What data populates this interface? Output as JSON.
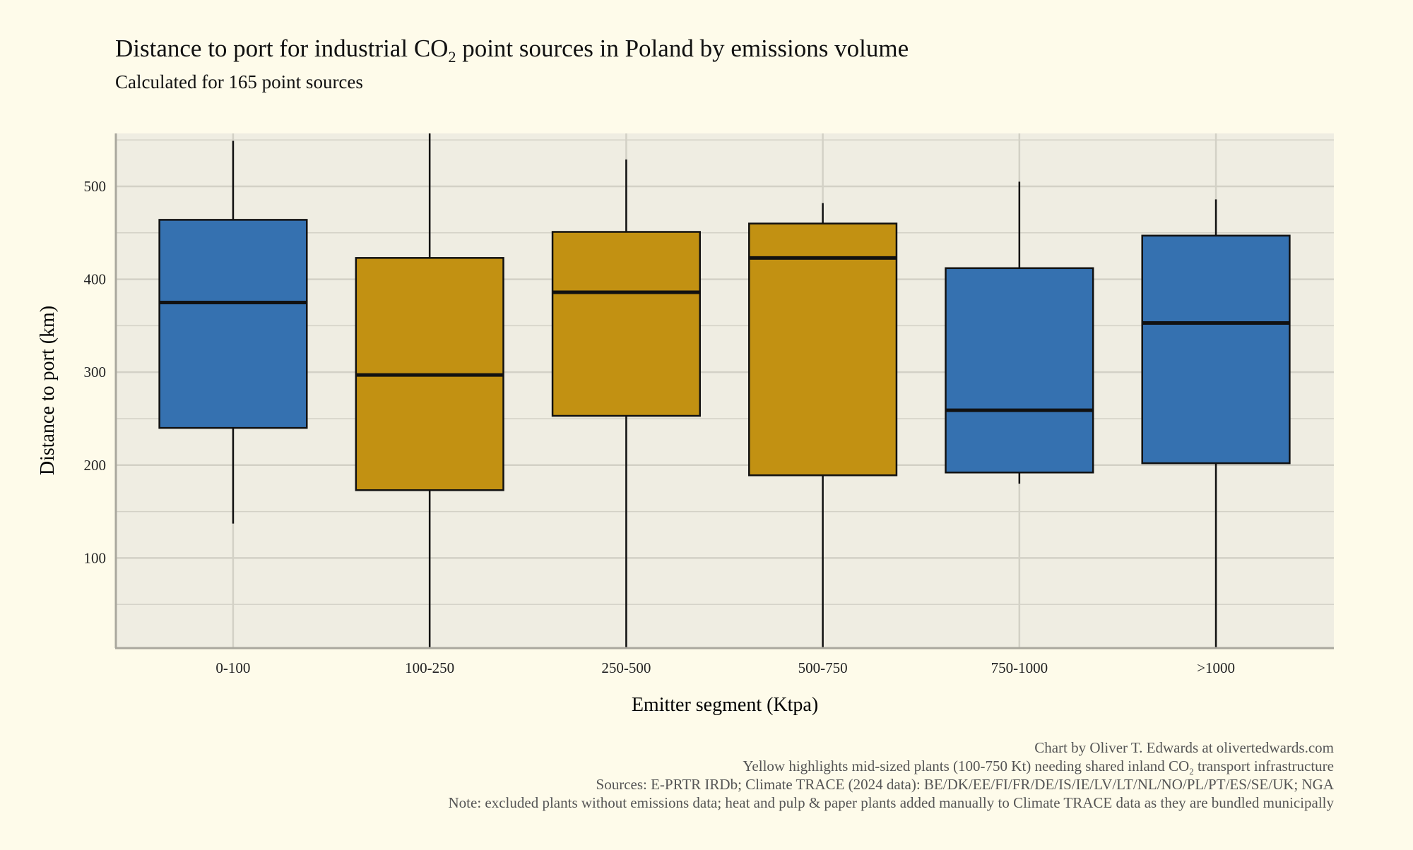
{
  "chart_data": {
    "type": "boxplot",
    "title_main": "Distance to port for industrial CO",
    "title_sub2": "2",
    "title_rest": " point sources in Poland by emissions volume",
    "subtitle": "Calculated for 165 point sources",
    "xlabel": "Emitter segment (Ktpa)",
    "ylabel": "Distance to port (km)",
    "ylim": [
      3,
      557
    ],
    "yticks": [
      100,
      200,
      300,
      400,
      500
    ],
    "yticks_minor": [
      50,
      150,
      250,
      350,
      450,
      550
    ],
    "grid": true,
    "categories": [
      "0-100",
      "100-250",
      "250-500",
      "500-750",
      "750-1000",
      ">1000"
    ],
    "boxes": [
      {
        "category": "0-100",
        "whisker_low": 137,
        "q1": 240,
        "median": 375,
        "q3": 464,
        "whisker_high": 549,
        "highlight": false
      },
      {
        "category": "100-250",
        "whisker_low": 3,
        "q1": 173,
        "median": 297,
        "q3": 423,
        "whisker_high": 557,
        "highlight": true
      },
      {
        "category": "250-500",
        "whisker_low": 3,
        "q1": 253,
        "median": 386,
        "q3": 451,
        "whisker_high": 529,
        "highlight": true
      },
      {
        "category": "500-750",
        "whisker_low": 3,
        "q1": 189,
        "median": 423,
        "q3": 460,
        "whisker_high": 482,
        "highlight": true
      },
      {
        "category": "750-1000",
        "whisker_low": 180,
        "q1": 192,
        "median": 259,
        "q3": 412,
        "whisker_high": 505,
        "highlight": false
      },
      {
        "category": ">1000",
        "whisker_low": 3,
        "q1": 202,
        "median": 353,
        "q3": 447,
        "whisker_high": 486,
        "highlight": false
      }
    ],
    "colors": {
      "default": "#3571b0",
      "highlight": "#c29112",
      "panel": "#efede2",
      "background": "#fefbea",
      "grid": "#d3d1c6"
    },
    "caption": {
      "line1": "Chart by Oliver T. Edwards at olivertedwards.com",
      "line2_a": "Yellow highlights mid-sized plants (100-750 Kt) needing shared inland CO",
      "line2_sub": "2",
      "line2_b": " transport infrastructure",
      "line3": "Sources: E-PRTR IRDb; Climate TRACE (2024 data): BE/DK/EE/FI/FR/DE/IS/IE/LV/LT/NL/NO/PL/PT/ES/SE/UK; NGA",
      "line4": "Note: excluded plants without emissions data; heat and pulp & paper plants added manually to Climate TRACE data as they are bundled municipally"
    }
  }
}
